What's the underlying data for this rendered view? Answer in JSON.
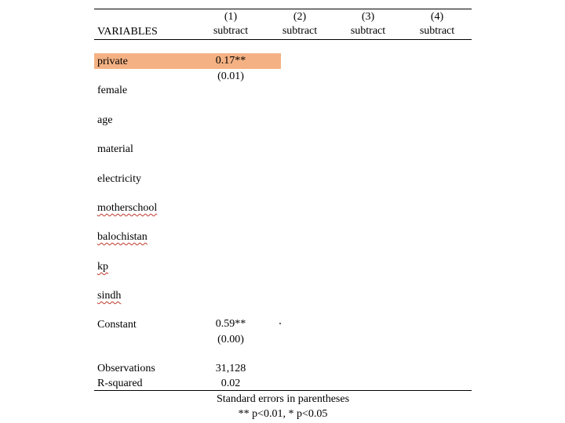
{
  "header": {
    "col_label": "VARIABLES",
    "columns": [
      {
        "num": "(1)",
        "dep": "subtract"
      },
      {
        "num": "(2)",
        "dep": "subtract"
      },
      {
        "num": "(3)",
        "dep": "subtract"
      },
      {
        "num": "(4)",
        "dep": "subtract"
      }
    ]
  },
  "rows": {
    "private": {
      "label": "private",
      "coef": "0.17**",
      "se": "(0.01)"
    },
    "female": {
      "label": "female"
    },
    "age": {
      "label": "age"
    },
    "material": {
      "label": "material"
    },
    "electricity": {
      "label": "electricity"
    },
    "motherschool": {
      "label": "motherschool"
    },
    "balochistan": {
      "label": "balochistan"
    },
    "kp": {
      "label": "kp"
    },
    "sindh": {
      "label": "sindh"
    },
    "constant": {
      "label": "Constant",
      "coef": "0.59**",
      "se": "(0.00)"
    }
  },
  "stats": {
    "observations": {
      "label": "Observations",
      "value": "31,128"
    },
    "rsquared": {
      "label": "R-squared",
      "value": "0.02"
    }
  },
  "notes": {
    "line1": "Standard errors in parentheses",
    "line2": "** p<0.01, * p<0.05"
  },
  "colors": {
    "highlight": "#f4b183",
    "spellcheck": "#c0392b"
  }
}
